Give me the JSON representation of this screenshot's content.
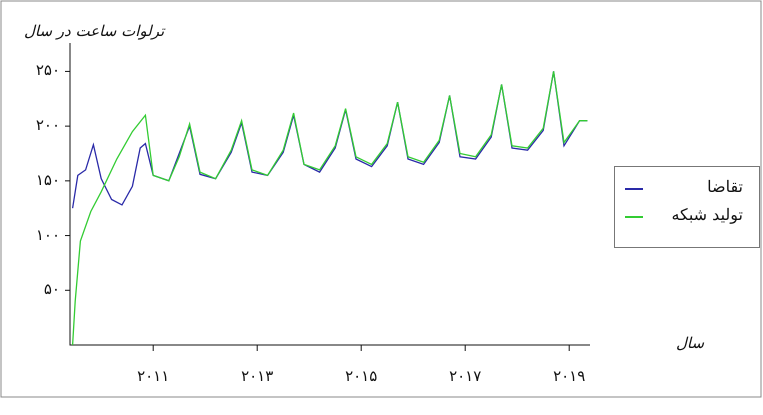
{
  "chart_data": {
    "type": "line",
    "ylabel": "ترلوات ساعت در سال",
    "xlabel": "سال",
    "yticks": [
      "۲۵۰",
      "۲۰۰",
      "۱۵۰",
      "۱۰۰",
      "۵۰"
    ],
    "ytick_values": [
      250,
      200,
      150,
      100,
      50
    ],
    "xticks": [
      "۲۰۱۱",
      "۲۰۱۳",
      "۲۰۱۵",
      "۲۰۱۷",
      "۲۰۱۹"
    ],
    "xtick_values": [
      2011,
      2013,
      2015,
      2017,
      2019
    ],
    "xlim": [
      2009.4,
      2019.4
    ],
    "ylim": [
      0,
      265
    ],
    "legend_position": "right",
    "series": [
      {
        "name": "تقاضا",
        "color": "#2a2aa8",
        "x": [
          2009.45,
          2009.55,
          2009.7,
          2009.85,
          2010.0,
          2010.2,
          2010.4,
          2010.6,
          2010.75,
          2010.85,
          2011.0,
          2011.3,
          2011.5,
          2011.7,
          2011.9,
          2012.2,
          2012.5,
          2012.7,
          2012.9,
          2013.2,
          2013.5,
          2013.7,
          2013.9,
          2014.2,
          2014.5,
          2014.7,
          2014.9,
          2015.2,
          2015.5,
          2015.7,
          2015.9,
          2016.2,
          2016.5,
          2016.7,
          2016.9,
          2017.2,
          2017.5,
          2017.7,
          2017.9,
          2018.2,
          2018.5,
          2018.7,
          2018.9,
          2019.2,
          2019.35
        ],
        "values": [
          125,
          155,
          160,
          183,
          152,
          133,
          128,
          145,
          180,
          184,
          155,
          150,
          175,
          200,
          156,
          152,
          176,
          203,
          158,
          155,
          176,
          210,
          165,
          158,
          180,
          215,
          170,
          163,
          182,
          222,
          170,
          165,
          185,
          228,
          172,
          170,
          190,
          238,
          180,
          178,
          196,
          250,
          182,
          205,
          205
        ]
      },
      {
        "name": "تولید شبکه",
        "color": "#33cc33",
        "x": [
          2009.45,
          2009.5,
          2009.6,
          2009.8,
          2010.0,
          2010.3,
          2010.6,
          2010.85,
          2011.0,
          2011.3,
          2011.5,
          2011.7,
          2011.9,
          2012.2,
          2012.5,
          2012.7,
          2012.9,
          2013.2,
          2013.5,
          2013.7,
          2013.9,
          2014.2,
          2014.5,
          2014.7,
          2014.9,
          2015.2,
          2015.5,
          2015.7,
          2015.9,
          2016.2,
          2016.5,
          2016.7,
          2016.9,
          2017.2,
          2017.5,
          2017.7,
          2017.9,
          2018.2,
          2018.5,
          2018.7,
          2018.9,
          2019.2,
          2019.35
        ],
        "values": [
          0,
          40,
          95,
          122,
          140,
          170,
          195,
          210,
          155,
          150,
          172,
          202,
          158,
          152,
          178,
          205,
          160,
          155,
          178,
          212,
          165,
          160,
          182,
          216,
          172,
          165,
          184,
          222,
          172,
          167,
          187,
          228,
          175,
          172,
          192,
          238,
          182,
          180,
          198,
          250,
          185,
          205,
          205
        ]
      }
    ]
  }
}
